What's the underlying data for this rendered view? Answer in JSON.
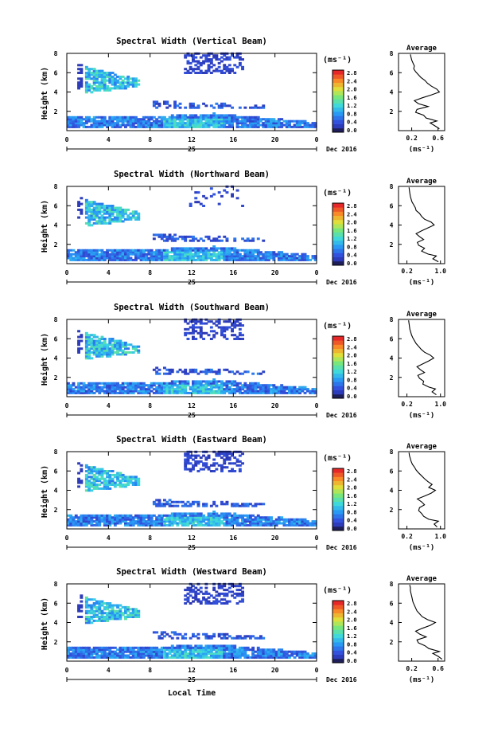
{
  "chart_data": [
    {
      "type": "heatmap",
      "title": "Spectral Width (Vertical Beam)",
      "ylabel": "Height (km)",
      "xticks": [
        "0",
        "4",
        "8",
        "12",
        "16",
        "20",
        "0"
      ],
      "yticks": [
        "2",
        "4",
        "6",
        "8"
      ],
      "date_day": "25",
      "date_month": "Dec 2016",
      "unit": "(ms⁻¹)",
      "colorbar_ticks": [
        "0.0",
        "0.4",
        "0.8",
        "1.2",
        "1.6",
        "2.0",
        "2.4",
        "2.8"
      ],
      "average": {
        "title": "Average",
        "xlabel": "(ms⁻¹)",
        "xticks": [
          "0.2",
          "0.6"
        ],
        "yticks": [
          "2",
          "4",
          "6",
          "8"
        ],
        "height_km": [
          0.2,
          0.5,
          0.8,
          1.0,
          1.3,
          1.6,
          1.9,
          2.2,
          2.5,
          2.8,
          3.1,
          3.4,
          3.7,
          4.0,
          4.3,
          4.6,
          4.9,
          5.2,
          5.5,
          5.8,
          6.1,
          6.4,
          6.7,
          7.0,
          7.3,
          7.6,
          7.9
        ],
        "width_ms": [
          0.62,
          0.55,
          0.48,
          0.58,
          0.42,
          0.38,
          0.26,
          0.28,
          0.45,
          0.3,
          0.24,
          0.36,
          0.5,
          0.62,
          0.58,
          0.5,
          0.44,
          0.4,
          0.34,
          0.3,
          0.26,
          0.23,
          0.24,
          0.22,
          0.2,
          0.19,
          0.18
        ]
      }
    },
    {
      "type": "heatmap",
      "title": "Spectral Width (Northward Beam)",
      "ylabel": "Height (km)",
      "xticks": [
        "0",
        "4",
        "8",
        "12",
        "16",
        "20",
        "0"
      ],
      "yticks": [
        "2",
        "4",
        "6",
        "8"
      ],
      "date_day": "25",
      "date_month": "Dec 2016",
      "unit": "(ms⁻¹)",
      "colorbar_ticks": [
        "0.0",
        "0.4",
        "0.8",
        "1.2",
        "1.6",
        "2.0",
        "2.4",
        "2.8"
      ],
      "average": {
        "title": "Average",
        "xlabel": "(ms⁻¹)",
        "xticks": [
          "0.2",
          "1.0"
        ],
        "yticks": [
          "2",
          "4",
          "6",
          "8"
        ],
        "height_km": [
          0.2,
          0.5,
          0.8,
          1.0,
          1.3,
          1.6,
          1.9,
          2.2,
          2.5,
          2.8,
          3.1,
          3.4,
          3.7,
          4.0,
          4.3,
          4.6,
          4.9,
          5.2,
          5.5,
          5.8,
          6.1,
          6.4,
          6.7,
          7.0,
          7.3,
          7.6,
          7.9
        ],
        "width_ms": [
          0.95,
          0.82,
          0.9,
          0.7,
          0.55,
          0.62,
          0.48,
          0.45,
          0.6,
          0.5,
          0.42,
          0.55,
          0.7,
          0.85,
          0.78,
          0.62,
          0.55,
          0.5,
          0.42,
          0.4,
          0.36,
          0.32,
          0.3,
          0.28,
          0.27,
          0.26,
          0.25
        ]
      }
    },
    {
      "type": "heatmap",
      "title": "Spectral Width (Southward Beam)",
      "ylabel": "Height (km)",
      "xticks": [
        "0",
        "4",
        "8",
        "12",
        "16",
        "20",
        "0"
      ],
      "yticks": [
        "2",
        "4",
        "6",
        "8"
      ],
      "date_day": "25",
      "date_month": "Dec 2016",
      "unit": "(ms⁻¹)",
      "colorbar_ticks": [
        "0.0",
        "0.4",
        "0.8",
        "1.2",
        "1.6",
        "2.0",
        "2.4",
        "2.8"
      ],
      "average": {
        "title": "Average",
        "xlabel": "(ms⁻¹)",
        "xticks": [
          "0.2",
          "1.0"
        ],
        "yticks": [
          "2",
          "4",
          "6",
          "8"
        ],
        "height_km": [
          0.2,
          0.5,
          0.8,
          1.0,
          1.3,
          1.6,
          1.9,
          2.2,
          2.5,
          2.8,
          3.1,
          3.4,
          3.7,
          4.0,
          4.3,
          4.6,
          4.9,
          5.2,
          5.5,
          5.8,
          6.1,
          6.4,
          6.7,
          7.0,
          7.3,
          7.6,
          7.9
        ],
        "width_ms": [
          0.9,
          0.8,
          0.88,
          0.72,
          0.58,
          0.6,
          0.5,
          0.46,
          0.62,
          0.52,
          0.44,
          0.58,
          0.72,
          0.84,
          0.76,
          0.62,
          0.54,
          0.48,
          0.42,
          0.38,
          0.34,
          0.31,
          0.29,
          0.27,
          0.26,
          0.25,
          0.24
        ]
      }
    },
    {
      "type": "heatmap",
      "title": "Spectral Width (Eastward Beam)",
      "ylabel": "Height (km)",
      "xticks": [
        "0",
        "4",
        "8",
        "12",
        "16",
        "20",
        "0"
      ],
      "yticks": [
        "2",
        "4",
        "6",
        "8"
      ],
      "date_day": "25",
      "date_month": "Dec 2016",
      "unit": "(ms⁻¹)",
      "colorbar_ticks": [
        "0.0",
        "0.4",
        "0.8",
        "1.2",
        "1.6",
        "2.0",
        "2.4",
        "2.8"
      ],
      "average": {
        "title": "Average",
        "xlabel": "(ms⁻¹)",
        "xticks": [
          "0.2",
          "1.0"
        ],
        "yticks": [
          "2",
          "4",
          "6",
          "8"
        ],
        "height_km": [
          0.2,
          0.5,
          0.8,
          1.0,
          1.3,
          1.6,
          1.9,
          2.2,
          2.5,
          2.8,
          3.1,
          3.4,
          3.7,
          4.0,
          4.3,
          4.6,
          4.9,
          5.2,
          5.5,
          5.8,
          6.1,
          6.4,
          6.7,
          7.0,
          7.3,
          7.6,
          7.9
        ],
        "width_ms": [
          0.92,
          0.85,
          0.95,
          0.72,
          0.6,
          0.55,
          0.48,
          0.5,
          0.62,
          0.55,
          0.45,
          0.62,
          0.78,
          0.88,
          0.72,
          0.8,
          0.7,
          0.62,
          0.55,
          0.48,
          0.42,
          0.38,
          0.33,
          0.3,
          0.28,
          0.26,
          0.25
        ]
      }
    },
    {
      "type": "heatmap",
      "title": "Spectral Width (Westward Beam)",
      "ylabel": "Height (km)",
      "xlabel": "Local Time",
      "xticks": [
        "0",
        "4",
        "8",
        "12",
        "16",
        "20",
        "0"
      ],
      "yticks": [
        "2",
        "4",
        "6",
        "8"
      ],
      "date_day": "25",
      "date_month": "Dec 2016",
      "unit": "(ms⁻¹)",
      "colorbar_ticks": [
        "0.0",
        "0.4",
        "0.8",
        "1.2",
        "1.6",
        "2.0",
        "2.4",
        "2.8"
      ],
      "average": {
        "title": "Average",
        "xlabel": "(ms⁻¹)",
        "xticks": [
          "0.2",
          "0.6"
        ],
        "yticks": [
          "2",
          "4",
          "6",
          "8"
        ],
        "height_km": [
          0.2,
          0.5,
          0.8,
          1.0,
          1.3,
          1.6,
          1.9,
          2.2,
          2.5,
          2.8,
          3.1,
          3.4,
          3.7,
          4.0,
          4.3,
          4.6,
          4.9,
          5.2,
          5.5,
          5.8,
          6.1,
          6.4,
          6.7,
          7.0,
          7.3,
          7.6,
          7.9
        ],
        "width_ms": [
          0.66,
          0.6,
          0.52,
          0.62,
          0.46,
          0.4,
          0.3,
          0.28,
          0.42,
          0.32,
          0.26,
          0.36,
          0.48,
          0.56,
          0.44,
          0.36,
          0.32,
          0.28,
          0.26,
          0.24,
          0.22,
          0.21,
          0.2,
          0.19,
          0.18,
          0.18,
          0.17
        ]
      }
    }
  ]
}
